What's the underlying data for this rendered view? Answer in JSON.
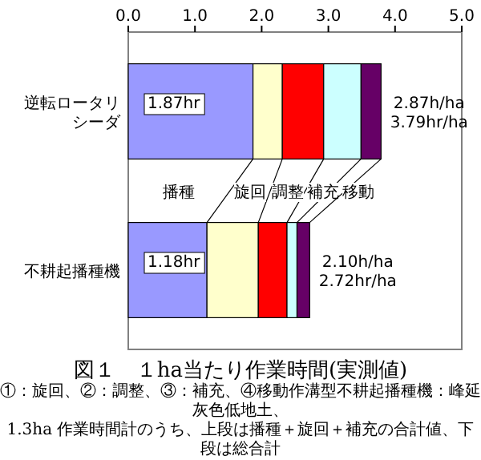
{
  "chart_data": {
    "type": "bar",
    "orientation": "horizontal",
    "stacked": true,
    "title": "図１　１ha当たり作業時間(実測値)",
    "annotations": [
      "①：旋回、②：調整、③：補充、④移動作溝型不耕起播種機：峰延灰色低地土、",
      "1.3ha 作業時間計のうち、上段は播種＋旋回＋補充の合計値、下段は総合計"
    ],
    "categories": [
      "逆転ロータリシーダ",
      "不耕起播種機"
    ],
    "series": [
      {
        "name": "播種",
        "color": "#9999ff",
        "values": [
          1.87,
          1.18
        ],
        "value_labels": [
          "1.87hr",
          "1.18hr"
        ]
      },
      {
        "name": "旋回",
        "color": "#ffffcc",
        "values": [
          0.44,
          0.77
        ]
      },
      {
        "name": "調整",
        "color": "#ff0000",
        "values": [
          0.62,
          0.43
        ]
      },
      {
        "name": "補充",
        "color": "#ccffff",
        "values": [
          0.56,
          0.15
        ]
      },
      {
        "name": "移動",
        "color": "#660066",
        "values": [
          0.3,
          0.19
        ]
      }
    ],
    "xlim": [
      0,
      5
    ],
    "xticks": [
      {
        "value": 0,
        "label": "0.0"
      },
      {
        "value": 1,
        "label": "1.0"
      },
      {
        "value": 2,
        "label": "2.0"
      },
      {
        "value": 3,
        "label": "3.0"
      },
      {
        "value": 4,
        "label": "4.0"
      },
      {
        "value": 5,
        "label": "5.0"
      }
    ],
    "totals": [
      "2.87h/ha\n3.79hr/ha",
      "2.10h/ha\n2.72hr/ha"
    ]
  }
}
